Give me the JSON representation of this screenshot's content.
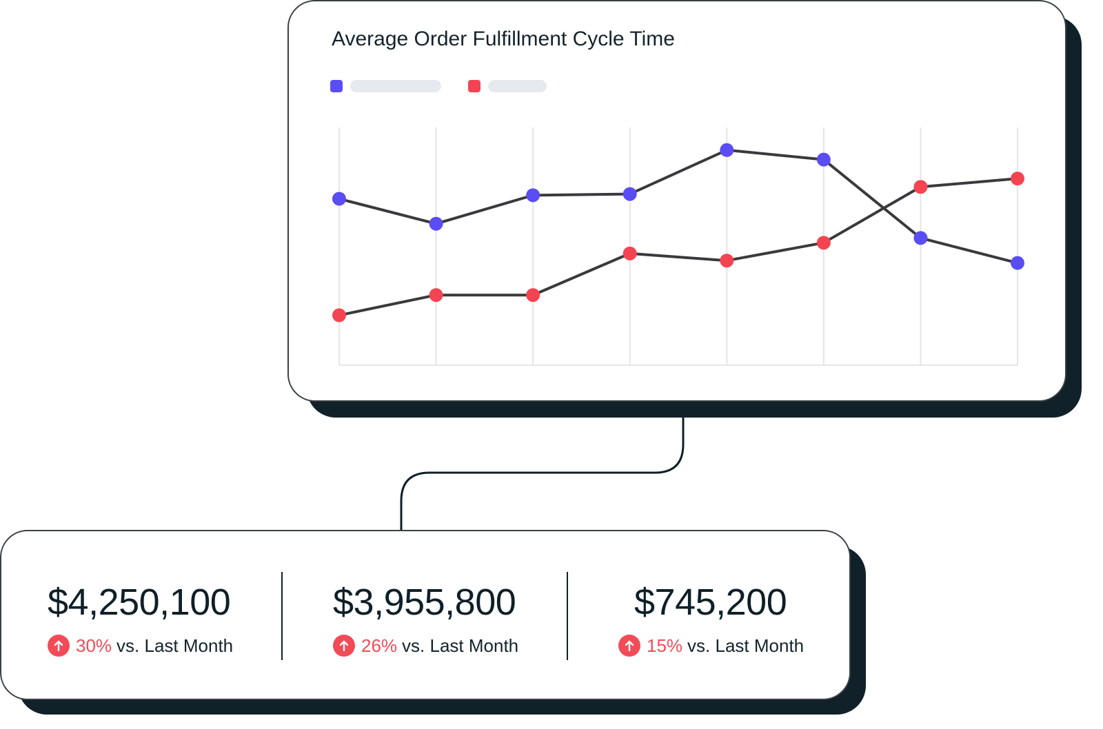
{
  "chart_data": {
    "type": "line",
    "title": "Average Order Fulfillment Cycle Time",
    "categories": [
      "",
      "",
      "",
      "",
      "",
      "",
      "",
      ""
    ],
    "ylim": [
      0,
      100
    ],
    "grid": "vertical",
    "legend": "top-left",
    "series": [
      {
        "color": "#5a4df3",
        "values": [
          70,
          59.5,
          71.5,
          72,
          90.5,
          86.5,
          53.5,
          43
        ]
      },
      {
        "color": "#f44452",
        "values": [
          21,
          29.5,
          29.5,
          47,
          44,
          51.5,
          75,
          78.5
        ]
      }
    ]
  },
  "colors": {
    "line": "#3a3a3c",
    "grid": "#e3e6e8",
    "accent_red": "#f24b57"
  },
  "kpis": [
    {
      "value": "$4,250,100",
      "delta_pct": "30%",
      "delta_suffix": "vs. Last Month",
      "icon": "arrow-up-icon"
    },
    {
      "value": "$3,955,800",
      "delta_pct": "26%",
      "delta_suffix": "vs. Last Month",
      "icon": "arrow-up-icon"
    },
    {
      "value": "$745,200",
      "delta_pct": "15%",
      "delta_suffix": "vs. Last Month",
      "icon": "arrow-up-icon"
    }
  ]
}
